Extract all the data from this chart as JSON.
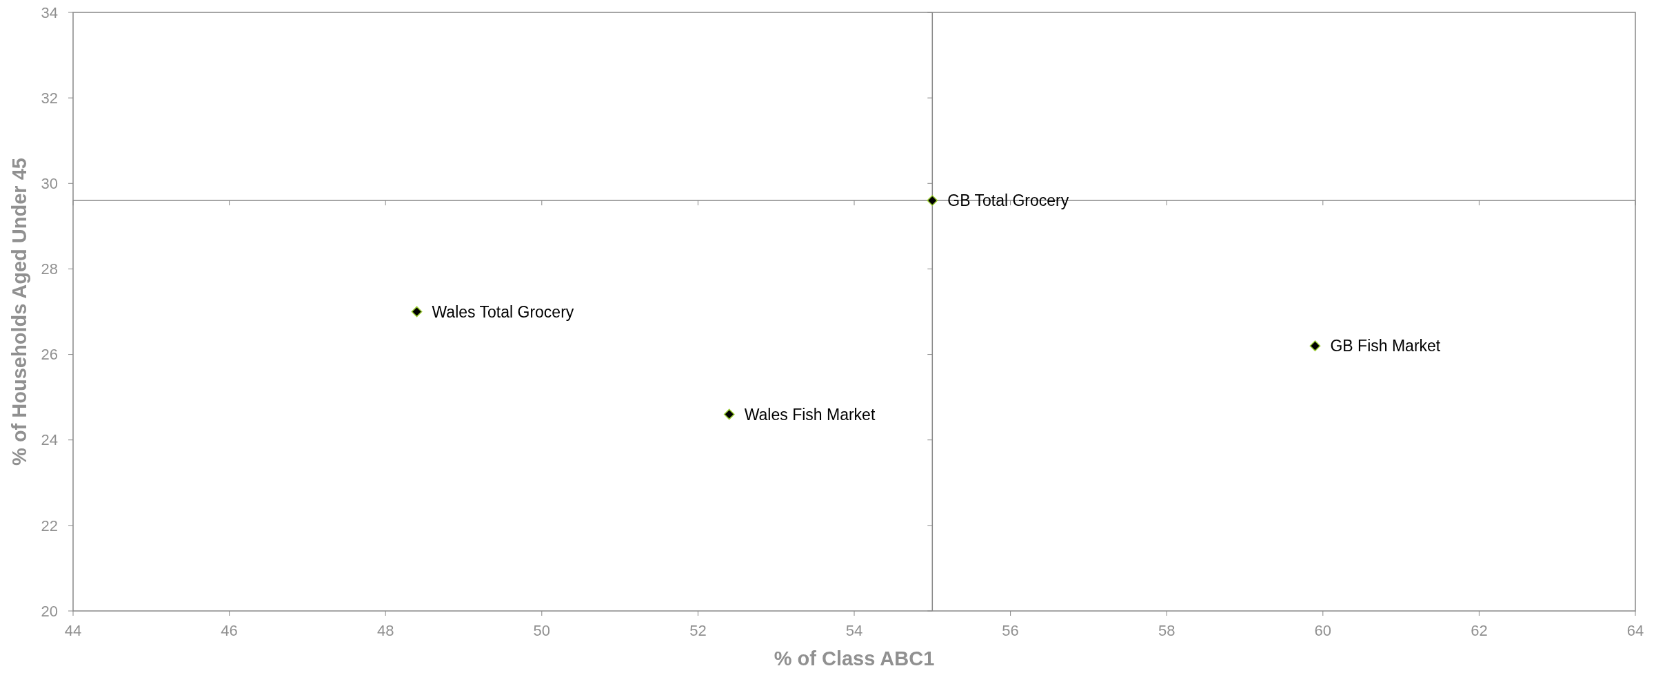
{
  "chart_data": {
    "type": "scatter",
    "xlabel": "% of Class ABC1",
    "ylabel": "% of Households Aged Under 45",
    "xlim": [
      44,
      64
    ],
    "xticks": [
      44,
      46,
      48,
      50,
      52,
      54,
      56,
      58,
      60,
      62,
      64
    ],
    "ylim": [
      20,
      34
    ],
    "yticks": [
      20,
      22,
      24,
      26,
      28,
      30,
      32,
      34
    ],
    "marker": "diamond",
    "grid": false,
    "ref_lines": [
      {
        "axis": "x",
        "value": 55,
        "color": "#888888"
      },
      {
        "axis": "y",
        "value": 29.6,
        "color": "#888888"
      }
    ],
    "series": [
      {
        "name": "Wales Total Grocery",
        "color": "#000000",
        "x": [
          48.4
        ],
        "values": [
          27.0
        ]
      },
      {
        "name": "Wales Fish Market",
        "color": "#000000",
        "x": [
          52.4
        ],
        "values": [
          24.6
        ]
      },
      {
        "name": "GB Total Grocery",
        "color": "#000000",
        "x": [
          55.0
        ],
        "values": [
          29.6
        ]
      },
      {
        "name": "GB Fish Market",
        "color": "#000000",
        "x": [
          59.9
        ],
        "values": [
          26.2
        ]
      }
    ]
  }
}
